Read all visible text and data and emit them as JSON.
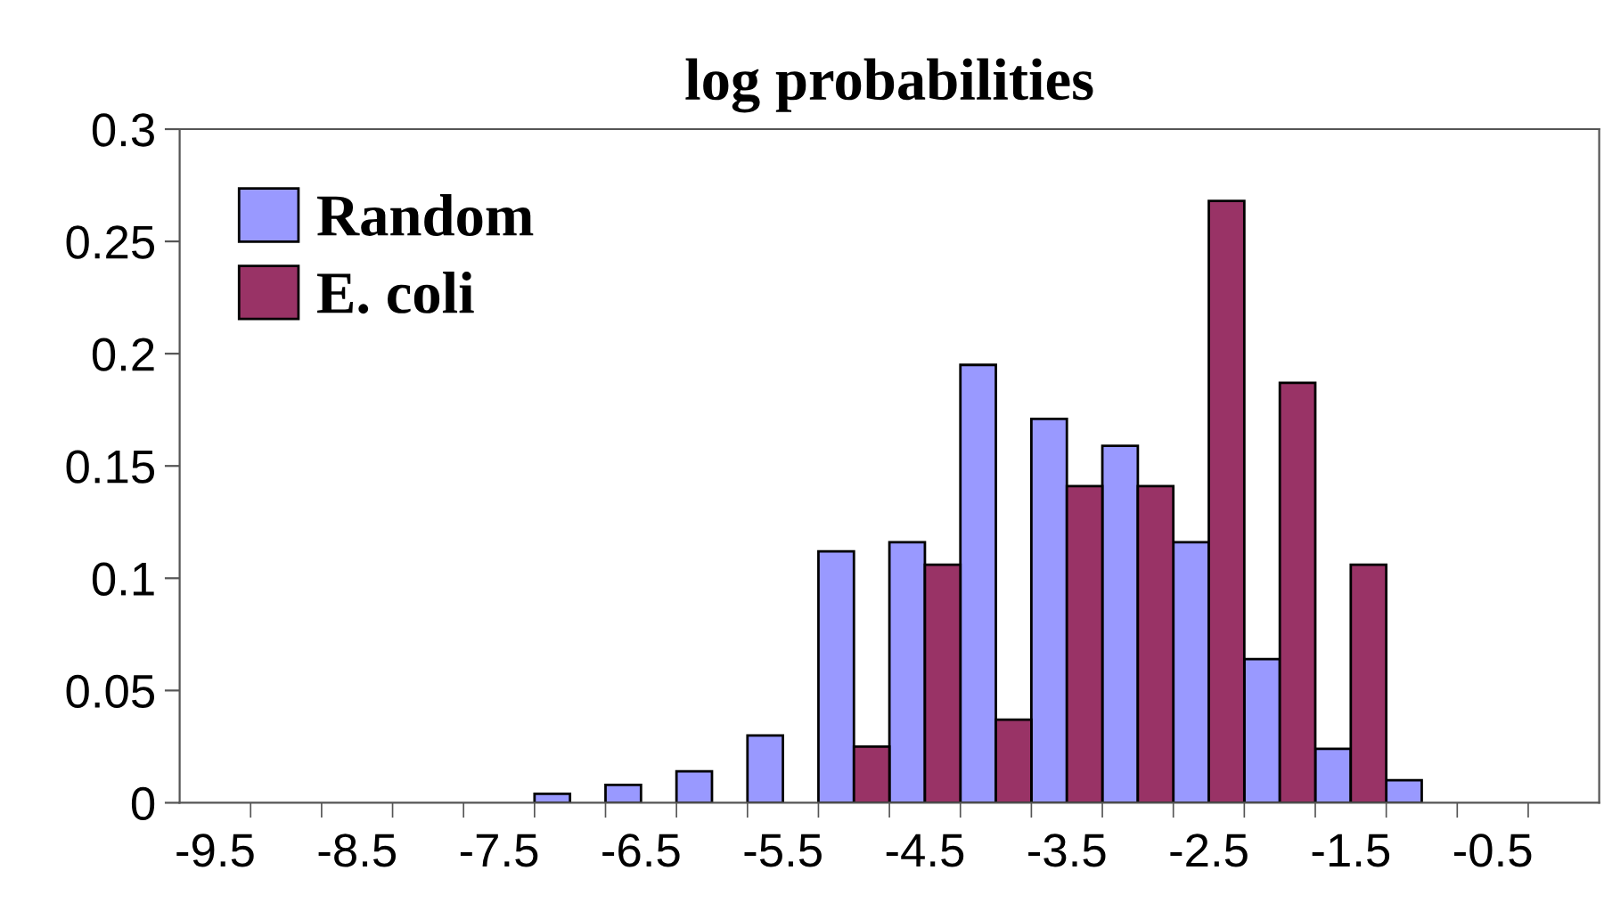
{
  "chart_data": {
    "type": "bar",
    "title": "log probabilities",
    "categories": [
      "-9.5",
      null,
      "-8.5",
      null,
      "-7.5",
      null,
      "-6.5",
      null,
      "-5.5",
      null,
      "-4.5",
      null,
      "-3.5",
      null,
      "-2.5",
      null,
      "-1.5",
      null,
      "-0.5",
      null
    ],
    "series": [
      {
        "name": "Random",
        "color": "#9999ff",
        "values": [
          0,
          0,
          0,
          0,
          0,
          0.004,
          0.008,
          0.014,
          0.03,
          0.112,
          0.116,
          0.195,
          0.171,
          0.159,
          0.116,
          0.064,
          0.024,
          0.01,
          0,
          0
        ]
      },
      {
        "name": "E. coli",
        "color": "#993366",
        "values": [
          0,
          0,
          0,
          0,
          0,
          0,
          0,
          0,
          0,
          0.025,
          0.106,
          0.037,
          0.141,
          0.141,
          0.268,
          0.187,
          0.106,
          0,
          0,
          0
        ]
      }
    ],
    "ylim": [
      0,
      0.3
    ],
    "yticks": [
      0,
      0.05,
      0.1,
      0.15,
      0.2,
      0.25,
      0.3
    ],
    "grid": false,
    "legend": "top left"
  }
}
